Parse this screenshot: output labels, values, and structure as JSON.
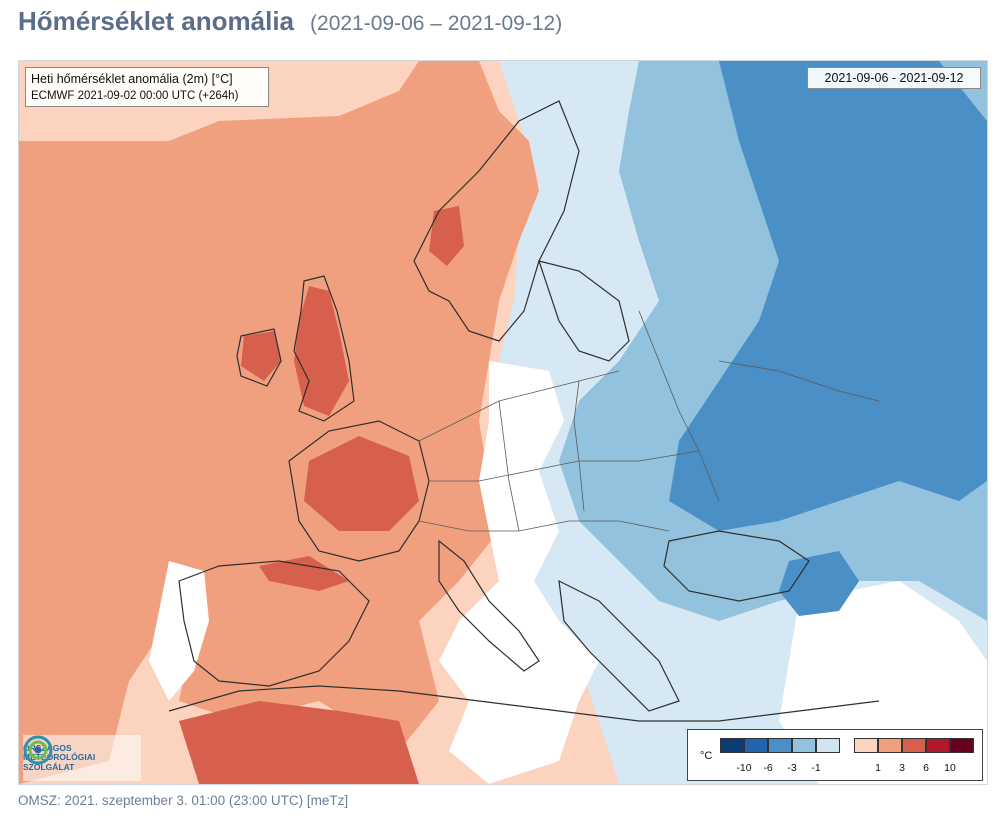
{
  "header": {
    "title": "Hőmérséklet anomália",
    "date_range": "(2021-09-06 – 2021-09-12)"
  },
  "map": {
    "info_line1": "Heti hőmérséklet anomália (2m) [°C]",
    "info_line2": "ECMWF 2021-09-02 00:00 UTC (+264h)",
    "date_box": "2021-09-06 - 2021-09-12"
  },
  "legend": {
    "unit": "°C",
    "cold_colors": [
      "#0b3c73",
      "#2166ac",
      "#4b8fc7",
      "#92c2de",
      "#d1e5f0"
    ],
    "warm_colors": [
      "#fbd3bf",
      "#f0a07e",
      "#d6604d",
      "#b2182b",
      "#67001f"
    ],
    "cold_labels": [
      "-10",
      "-6",
      "-3",
      "-1"
    ],
    "warm_labels": [
      "1",
      "3",
      "6",
      "10"
    ]
  },
  "logo": {
    "line1": "ORSZÁGOS",
    "line2": "METEOROLÓGIAI",
    "line3": "SZOLGÁLAT",
    "icon": "omsz-logo-icon"
  },
  "footer": {
    "text": "OMSZ: 2021. szeptember 3. 01:00 (23:00  UTC)  [meTz]"
  }
}
